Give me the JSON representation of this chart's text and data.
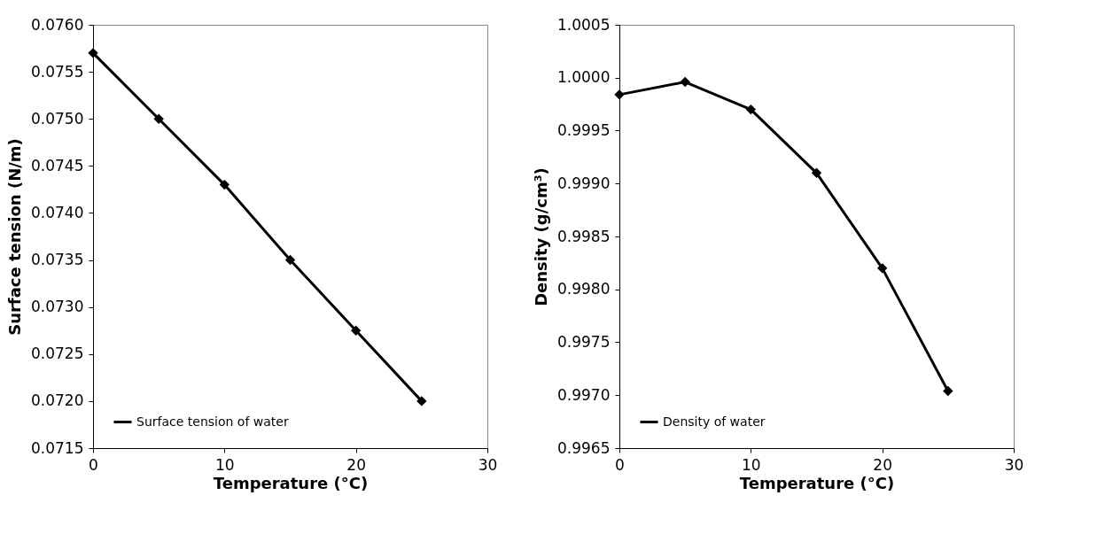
{
  "chart_data": [
    {
      "type": "line",
      "xlabel": "Temperature (°C)",
      "ylabel": "Surface tension (N/m)",
      "x": [
        0,
        5,
        10,
        15,
        20,
        25
      ],
      "series": [
        {
          "name": "Surface tension of water",
          "color": "#000000",
          "values": [
            0.0757,
            0.075,
            0.0743,
            0.0735,
            0.07275,
            0.072
          ]
        }
      ],
      "xlim": [
        0,
        30
      ],
      "xticks": [
        0,
        10,
        20,
        30
      ],
      "ylim": [
        0.0715,
        0.076
      ],
      "yticks": [
        0.0715,
        {
          "value": 0.072,
          "label": "0.0720"
        },
        0.0725,
        {
          "value": 0.073,
          "label": "0.0730"
        },
        0.0735,
        {
          "value": 0.074,
          "label": "0.0740"
        },
        0.0745,
        {
          "value": 0.075,
          "label": "0.0750"
        },
        0.0755,
        {
          "value": 0.076,
          "label": "0.0760"
        }
      ],
      "grid": false,
      "legend": "bottom left",
      "marker": "diamond",
      "line_style": "solid"
    },
    {
      "type": "line",
      "xlabel": "Temperature (°C)",
      "ylabel": "Density (g/cm³)",
      "x": [
        0,
        5,
        10,
        15,
        20,
        25
      ],
      "series": [
        {
          "name": "Density of water",
          "color": "#000000",
          "values": [
            0.99984,
            0.99996,
            0.9997,
            0.9991,
            0.9982,
            0.99704
          ]
        }
      ],
      "xlim": [
        0,
        30
      ],
      "xticks": [
        0,
        10,
        20,
        30
      ],
      "ylim": [
        0.9965,
        1.0005
      ],
      "yticks": [
        0.9965,
        {
          "value": 0.997,
          "label": "0.9970"
        },
        0.9975,
        {
          "value": 0.998,
          "label": "0.9980"
        },
        0.9985,
        {
          "value": 0.999,
          "label": "0.9990"
        },
        0.9995,
        {
          "value": 1,
          "label": "1.0000"
        },
        1.0005
      ],
      "grid": false,
      "legend": "bottom left",
      "marker": "diamond",
      "line_style": "solid"
    }
  ]
}
